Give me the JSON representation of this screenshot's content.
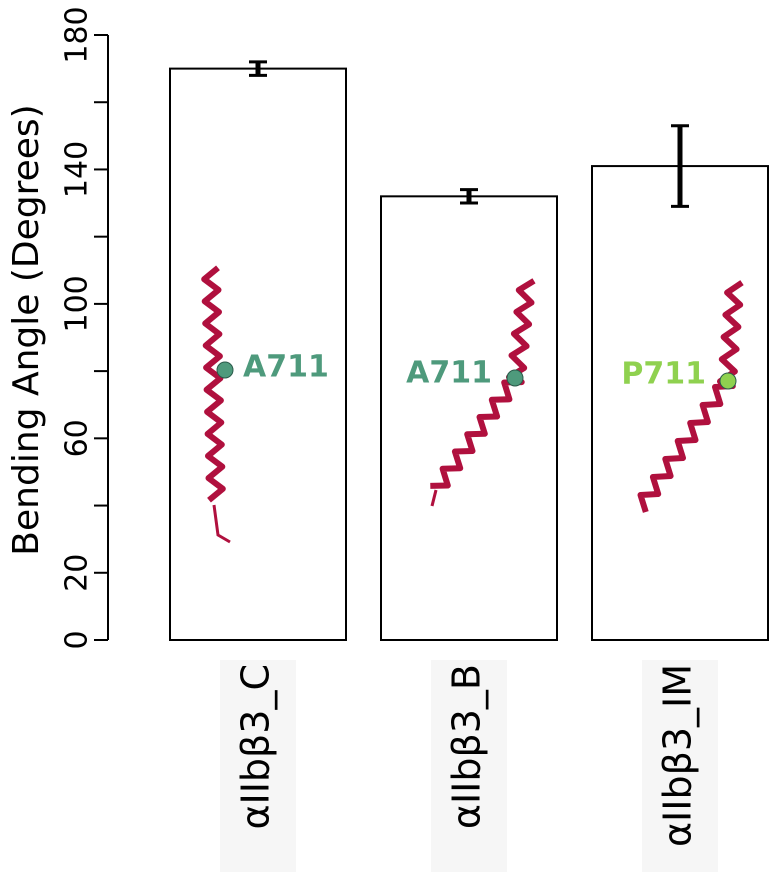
{
  "chart_data": {
    "type": "bar",
    "y_label": "Bending Angle (Degrees)",
    "categories": [
      "αIIbβ3_C",
      "αIIbβ3_B",
      "αIIbβ3_IM"
    ],
    "values": [
      170,
      132,
      141
    ],
    "errors": [
      2,
      2,
      12
    ],
    "color": "#ffffff",
    "ylim": [
      0,
      180
    ],
    "yticks": [
      0,
      20,
      60,
      100,
      140,
      180
    ],
    "yminor_ticks": [
      40,
      80,
      120,
      160
    ],
    "annotations": [
      {
        "text": "A711",
        "color": "#4e9a7c"
      },
      {
        "text": "A711",
        "color": "#4e9a7c"
      },
      {
        "text": "P711",
        "color": "#8fd14f"
      }
    ]
  }
}
